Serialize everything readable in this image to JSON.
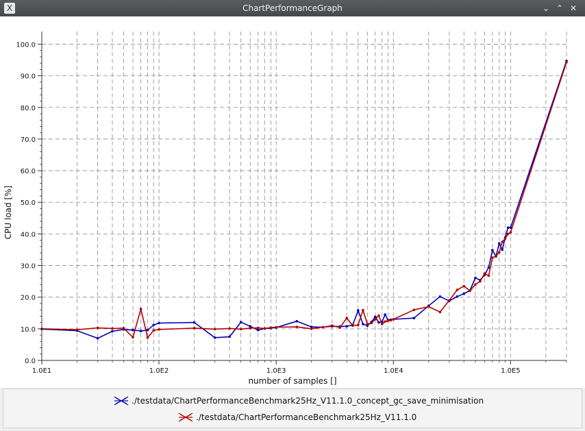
{
  "window": {
    "title": "ChartPerformanceGraph",
    "app_icon": "X"
  },
  "controls": [
    "minimize-icon",
    "maximize-icon",
    "close-icon"
  ],
  "colors": {
    "blue": "#0000b4",
    "red": "#b40000",
    "grid": "#8a8a8a"
  },
  "chart_data": {
    "type": "line",
    "xscale": "log",
    "xlim": [
      10,
      300000
    ],
    "ylim": [
      0,
      104
    ],
    "xlabel": "number of samples []",
    "ylabel": "CPU load [%]",
    "x_ticks": [
      "1.0E1",
      "1.0E2",
      "1.0E3",
      "1.0E4",
      "1.0E5"
    ],
    "y_ticks": [
      "0.0",
      "10.0",
      "20.0",
      "30.0",
      "40.0",
      "50.0",
      "60.0",
      "70.0",
      "80.0",
      "90.0",
      "100.0"
    ],
    "grid": true,
    "legend_position": "bottom",
    "series": [
      {
        "name": "./testdata/ChartPerformanceBenchmark25Hz_V11.1.0_concept_gc_save_minimisation",
        "color": "#0000b4",
        "x": [
          10,
          20,
          30,
          40,
          50,
          60,
          70,
          80,
          90,
          100,
          200,
          300,
          400,
          500,
          600,
          700,
          800,
          900,
          1000,
          1500,
          2000,
          2500,
          3000,
          3500,
          4000,
          4500,
          5000,
          5500,
          6000,
          6500,
          7000,
          7500,
          8000,
          8500,
          9000,
          9500,
          10000,
          15000,
          20000,
          25000,
          30000,
          35000,
          40000,
          45000,
          50000,
          55000,
          60000,
          65000,
          70000,
          75000,
          80000,
          85000,
          90000,
          95000,
          100000,
          300000
        ],
        "y": [
          9.9,
          9.4,
          7.0,
          9.2,
          9.8,
          9.6,
          9.3,
          9.6,
          11.2,
          11.8,
          12.0,
          7.2,
          7.5,
          12.1,
          10.8,
          9.6,
          10.1,
          10.2,
          10.4,
          12.4,
          10.6,
          10.5,
          10.8,
          10.7,
          10.8,
          11.2,
          15.8,
          11.5,
          11.0,
          12.2,
          13.8,
          12.0,
          12.2,
          14.5,
          12.8,
          12.9,
          13.0,
          13.4,
          17.3,
          20.2,
          18.8,
          20.2,
          21.1,
          22.1,
          26.1,
          25.4,
          27.0,
          29.4,
          34.9,
          32.9,
          37.0,
          35.0,
          38.9,
          42.0,
          42.0,
          94.7
        ]
      },
      {
        "name": "./testdata/ChartPerformanceBenchmark25Hz_V11.1.0",
        "color": "#b40000",
        "x": [
          10,
          20,
          30,
          40,
          50,
          60,
          70,
          80,
          90,
          100,
          200,
          300,
          400,
          500,
          600,
          700,
          800,
          900,
          1000,
          1500,
          2000,
          2500,
          3000,
          3500,
          4000,
          4500,
          5000,
          5500,
          6000,
          6500,
          7000,
          7500,
          8000,
          8500,
          9000,
          9500,
          10000,
          15000,
          20000,
          25000,
          30000,
          35000,
          40000,
          45000,
          50000,
          55000,
          60000,
          65000,
          70000,
          75000,
          80000,
          85000,
          90000,
          95000,
          100000,
          300000
        ],
        "y": [
          10.0,
          9.7,
          10.3,
          10.1,
          10.2,
          7.3,
          16.3,
          7.2,
          9.5,
          9.8,
          10.2,
          9.9,
          10.1,
          9.9,
          10.2,
          10.3,
          10.1,
          10.4,
          10.5,
          10.6,
          10.0,
          10.5,
          11.0,
          10.4,
          13.4,
          11.0,
          11.2,
          15.9,
          11.5,
          11.8,
          13.0,
          14.2,
          11.5,
          12.3,
          12.5,
          12.7,
          13.0,
          16.0,
          17.0,
          15.3,
          19.0,
          22.3,
          23.5,
          22.0,
          24.0,
          25.0,
          27.5,
          26.8,
          32.5,
          33.0,
          34.2,
          37.5,
          38.5,
          40.0,
          40.5,
          94.3
        ]
      }
    ]
  }
}
